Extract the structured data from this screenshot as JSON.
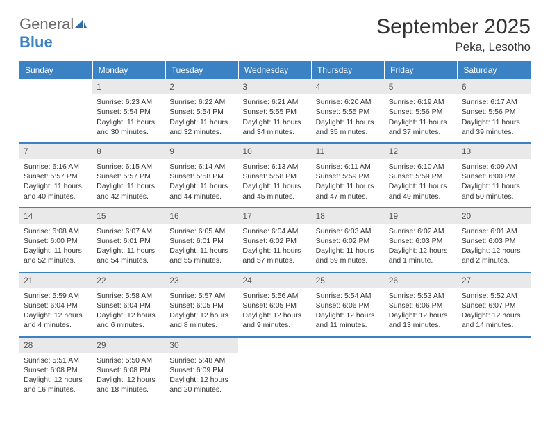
{
  "logo": {
    "text1": "General",
    "text2": "Blue"
  },
  "title": "September 2025",
  "location": "Peka, Lesotho",
  "colors": {
    "header_bg": "#3b82c4",
    "header_text": "#ffffff",
    "daynum_bg": "#e9e9e9",
    "row_border": "#3b82c4",
    "body_text": "#333333",
    "logo_gray": "#6b6b6b",
    "logo_blue": "#3b82c4",
    "page_bg": "#ffffff"
  },
  "typography": {
    "title_size": 30,
    "location_size": 17,
    "th_size": 12,
    "cell_size": 10.5
  },
  "dow": [
    "Sunday",
    "Monday",
    "Tuesday",
    "Wednesday",
    "Thursday",
    "Friday",
    "Saturday"
  ],
  "weeks": [
    [
      {
        "n": "",
        "sr": "",
        "ss": "",
        "dl": ""
      },
      {
        "n": "1",
        "sr": "Sunrise: 6:23 AM",
        "ss": "Sunset: 5:54 PM",
        "dl": "Daylight: 11 hours and 30 minutes."
      },
      {
        "n": "2",
        "sr": "Sunrise: 6:22 AM",
        "ss": "Sunset: 5:54 PM",
        "dl": "Daylight: 11 hours and 32 minutes."
      },
      {
        "n": "3",
        "sr": "Sunrise: 6:21 AM",
        "ss": "Sunset: 5:55 PM",
        "dl": "Daylight: 11 hours and 34 minutes."
      },
      {
        "n": "4",
        "sr": "Sunrise: 6:20 AM",
        "ss": "Sunset: 5:55 PM",
        "dl": "Daylight: 11 hours and 35 minutes."
      },
      {
        "n": "5",
        "sr": "Sunrise: 6:19 AM",
        "ss": "Sunset: 5:56 PM",
        "dl": "Daylight: 11 hours and 37 minutes."
      },
      {
        "n": "6",
        "sr": "Sunrise: 6:17 AM",
        "ss": "Sunset: 5:56 PM",
        "dl": "Daylight: 11 hours and 39 minutes."
      }
    ],
    [
      {
        "n": "7",
        "sr": "Sunrise: 6:16 AM",
        "ss": "Sunset: 5:57 PM",
        "dl": "Daylight: 11 hours and 40 minutes."
      },
      {
        "n": "8",
        "sr": "Sunrise: 6:15 AM",
        "ss": "Sunset: 5:57 PM",
        "dl": "Daylight: 11 hours and 42 minutes."
      },
      {
        "n": "9",
        "sr": "Sunrise: 6:14 AM",
        "ss": "Sunset: 5:58 PM",
        "dl": "Daylight: 11 hours and 44 minutes."
      },
      {
        "n": "10",
        "sr": "Sunrise: 6:13 AM",
        "ss": "Sunset: 5:58 PM",
        "dl": "Daylight: 11 hours and 45 minutes."
      },
      {
        "n": "11",
        "sr": "Sunrise: 6:11 AM",
        "ss": "Sunset: 5:59 PM",
        "dl": "Daylight: 11 hours and 47 minutes."
      },
      {
        "n": "12",
        "sr": "Sunrise: 6:10 AM",
        "ss": "Sunset: 5:59 PM",
        "dl": "Daylight: 11 hours and 49 minutes."
      },
      {
        "n": "13",
        "sr": "Sunrise: 6:09 AM",
        "ss": "Sunset: 6:00 PM",
        "dl": "Daylight: 11 hours and 50 minutes."
      }
    ],
    [
      {
        "n": "14",
        "sr": "Sunrise: 6:08 AM",
        "ss": "Sunset: 6:00 PM",
        "dl": "Daylight: 11 hours and 52 minutes."
      },
      {
        "n": "15",
        "sr": "Sunrise: 6:07 AM",
        "ss": "Sunset: 6:01 PM",
        "dl": "Daylight: 11 hours and 54 minutes."
      },
      {
        "n": "16",
        "sr": "Sunrise: 6:05 AM",
        "ss": "Sunset: 6:01 PM",
        "dl": "Daylight: 11 hours and 55 minutes."
      },
      {
        "n": "17",
        "sr": "Sunrise: 6:04 AM",
        "ss": "Sunset: 6:02 PM",
        "dl": "Daylight: 11 hours and 57 minutes."
      },
      {
        "n": "18",
        "sr": "Sunrise: 6:03 AM",
        "ss": "Sunset: 6:02 PM",
        "dl": "Daylight: 11 hours and 59 minutes."
      },
      {
        "n": "19",
        "sr": "Sunrise: 6:02 AM",
        "ss": "Sunset: 6:03 PM",
        "dl": "Daylight: 12 hours and 1 minute."
      },
      {
        "n": "20",
        "sr": "Sunrise: 6:01 AM",
        "ss": "Sunset: 6:03 PM",
        "dl": "Daylight: 12 hours and 2 minutes."
      }
    ],
    [
      {
        "n": "21",
        "sr": "Sunrise: 5:59 AM",
        "ss": "Sunset: 6:04 PM",
        "dl": "Daylight: 12 hours and 4 minutes."
      },
      {
        "n": "22",
        "sr": "Sunrise: 5:58 AM",
        "ss": "Sunset: 6:04 PM",
        "dl": "Daylight: 12 hours and 6 minutes."
      },
      {
        "n": "23",
        "sr": "Sunrise: 5:57 AM",
        "ss": "Sunset: 6:05 PM",
        "dl": "Daylight: 12 hours and 8 minutes."
      },
      {
        "n": "24",
        "sr": "Sunrise: 5:56 AM",
        "ss": "Sunset: 6:05 PM",
        "dl": "Daylight: 12 hours and 9 minutes."
      },
      {
        "n": "25",
        "sr": "Sunrise: 5:54 AM",
        "ss": "Sunset: 6:06 PM",
        "dl": "Daylight: 12 hours and 11 minutes."
      },
      {
        "n": "26",
        "sr": "Sunrise: 5:53 AM",
        "ss": "Sunset: 6:06 PM",
        "dl": "Daylight: 12 hours and 13 minutes."
      },
      {
        "n": "27",
        "sr": "Sunrise: 5:52 AM",
        "ss": "Sunset: 6:07 PM",
        "dl": "Daylight: 12 hours and 14 minutes."
      }
    ],
    [
      {
        "n": "28",
        "sr": "Sunrise: 5:51 AM",
        "ss": "Sunset: 6:08 PM",
        "dl": "Daylight: 12 hours and 16 minutes."
      },
      {
        "n": "29",
        "sr": "Sunrise: 5:50 AM",
        "ss": "Sunset: 6:08 PM",
        "dl": "Daylight: 12 hours and 18 minutes."
      },
      {
        "n": "30",
        "sr": "Sunrise: 5:48 AM",
        "ss": "Sunset: 6:09 PM",
        "dl": "Daylight: 12 hours and 20 minutes."
      },
      {
        "n": "",
        "sr": "",
        "ss": "",
        "dl": ""
      },
      {
        "n": "",
        "sr": "",
        "ss": "",
        "dl": ""
      },
      {
        "n": "",
        "sr": "",
        "ss": "",
        "dl": ""
      },
      {
        "n": "",
        "sr": "",
        "ss": "",
        "dl": ""
      }
    ]
  ]
}
